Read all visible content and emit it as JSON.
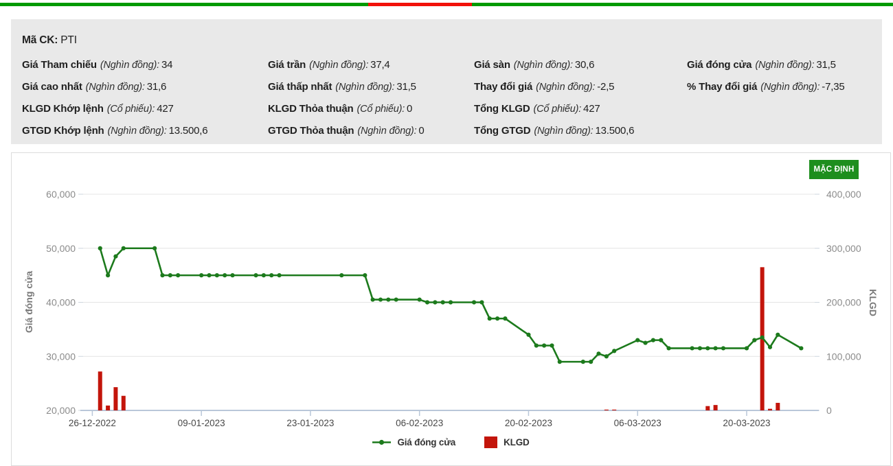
{
  "top_bar": {
    "green_color": "#009a00",
    "red_color": "#f2120a"
  },
  "info_panel": {
    "stock_label": "Mã CK:",
    "stock_code": "PTI",
    "rows": [
      [
        {
          "label": "Giá Tham chiếu",
          "unit": "(Nghìn đồng):",
          "value": "34"
        },
        {
          "label": "Giá trần",
          "unit": "(Nghìn đồng):",
          "value": "37,4"
        },
        {
          "label": "Giá sàn",
          "unit": "(Nghìn đồng):",
          "value": "30,6"
        },
        {
          "label": "Giá đóng cửa",
          "unit": "(Nghìn đồng):",
          "value": "31,5"
        }
      ],
      [
        {
          "label": "Giá cao nhất",
          "unit": "(Nghìn đồng):",
          "value": "31,6"
        },
        {
          "label": "Giá thấp nhất",
          "unit": "(Nghìn đồng):",
          "value": "31,5"
        },
        {
          "label": "Thay đổi giá",
          "unit": "(Nghìn đồng):",
          "value": "-2,5"
        },
        {
          "label": "% Thay đổi giá",
          "unit": "(Nghìn đồng):",
          "value": "-7,35"
        }
      ],
      [
        {
          "label": "KLGD Khớp lệnh",
          "unit": "(Cổ phiếu):",
          "value": "427"
        },
        {
          "label": "KLGD Thỏa thuận",
          "unit": "(Cổ phiếu):",
          "value": "0"
        },
        {
          "label": "Tổng KLGD",
          "unit": "(Cổ phiếu):",
          "value": "427"
        }
      ],
      [
        {
          "label": "GTGD Khớp lệnh",
          "unit": "(Nghìn đồng):",
          "value": "13.500,6"
        },
        {
          "label": "GTGD Thỏa thuận",
          "unit": "(Nghìn đồng):",
          "value": "0"
        },
        {
          "label": "Tổng GTGD",
          "unit": "(Nghìn đồng):",
          "value": "13.500,6"
        }
      ]
    ]
  },
  "chart": {
    "button_label": "MẶC ĐỊNH",
    "button_color": "#1e8e1e",
    "legend_price": "Giá đóng cửa",
    "legend_volume": "KLGD"
  },
  "chart_data": {
    "type": "line+bar",
    "x_axis": {
      "start_date": "26-12-2022",
      "tick_interval_days": 14,
      "tick_labels": [
        "26-12-2022",
        "09-01-2023",
        "23-01-2023",
        "06-02-2023",
        "20-02-2023",
        "06-03-2023",
        "20-03-2023"
      ]
    },
    "y_left": {
      "title": "Giá đóng cửa",
      "min": 20000,
      "max": 60000,
      "tick_labels": [
        "60,000",
        "50,000",
        "40,000",
        "30,000",
        "20,000"
      ],
      "tick_values": [
        60000,
        50000,
        40000,
        30000,
        20000
      ]
    },
    "y_right": {
      "title": "KLGD",
      "min": 0,
      "max": 400000,
      "tick_labels": [
        "400,000",
        "300,000",
        "200,000",
        "100,000",
        "0"
      ],
      "tick_values": [
        400000,
        300000,
        200000,
        100000,
        0
      ]
    },
    "grid": true,
    "legend_position": "bottom",
    "series": [
      {
        "name": "Giá đóng cửa",
        "type": "line",
        "color": "#1c7a1c",
        "axis": "left",
        "points": [
          {
            "date": "27-12-2022",
            "day": 1,
            "value": 50000
          },
          {
            "date": "28-12-2022",
            "day": 2,
            "value": 45000
          },
          {
            "date": "29-12-2022",
            "day": 3,
            "value": 48500
          },
          {
            "date": "30-12-2022",
            "day": 4,
            "value": 50000
          },
          {
            "date": "03-01-2023",
            "day": 8,
            "value": 50000
          },
          {
            "date": "04-01-2023",
            "day": 9,
            "value": 45000
          },
          {
            "date": "05-01-2023",
            "day": 10,
            "value": 45000
          },
          {
            "date": "06-01-2023",
            "day": 11,
            "value": 45000
          },
          {
            "date": "09-01-2023",
            "day": 14,
            "value": 45000
          },
          {
            "date": "10-01-2023",
            "day": 15,
            "value": 45000
          },
          {
            "date": "11-01-2023",
            "day": 16,
            "value": 45000
          },
          {
            "date": "12-01-2023",
            "day": 17,
            "value": 45000
          },
          {
            "date": "13-01-2023",
            "day": 18,
            "value": 45000
          },
          {
            "date": "16-01-2023",
            "day": 21,
            "value": 45000
          },
          {
            "date": "17-01-2023",
            "day": 22,
            "value": 45000
          },
          {
            "date": "18-01-2023",
            "day": 23,
            "value": 45000
          },
          {
            "date": "19-01-2023",
            "day": 24,
            "value": 45000
          },
          {
            "date": "27-01-2023",
            "day": 32,
            "value": 45000
          },
          {
            "date": "30-01-2023",
            "day": 35,
            "value": 45000
          },
          {
            "date": "31-01-2023",
            "day": 36,
            "value": 40500
          },
          {
            "date": "01-02-2023",
            "day": 37,
            "value": 40500
          },
          {
            "date": "02-02-2023",
            "day": 38,
            "value": 40500
          },
          {
            "date": "03-02-2023",
            "day": 39,
            "value": 40500
          },
          {
            "date": "06-02-2023",
            "day": 42,
            "value": 40500
          },
          {
            "date": "07-02-2023",
            "day": 43,
            "value": 40000
          },
          {
            "date": "08-02-2023",
            "day": 44,
            "value": 40000
          },
          {
            "date": "09-02-2023",
            "day": 45,
            "value": 40000
          },
          {
            "date": "10-02-2023",
            "day": 46,
            "value": 40000
          },
          {
            "date": "13-02-2023",
            "day": 49,
            "value": 40000
          },
          {
            "date": "14-02-2023",
            "day": 50,
            "value": 40000
          },
          {
            "date": "15-02-2023",
            "day": 51,
            "value": 37000
          },
          {
            "date": "16-02-2023",
            "day": 52,
            "value": 37000
          },
          {
            "date": "17-02-2023",
            "day": 53,
            "value": 37000
          },
          {
            "date": "20-02-2023",
            "day": 56,
            "value": 34000
          },
          {
            "date": "21-02-2023",
            "day": 57,
            "value": 32000
          },
          {
            "date": "22-02-2023",
            "day": 58,
            "value": 32000
          },
          {
            "date": "23-02-2023",
            "day": 59,
            "value": 32000
          },
          {
            "date": "24-02-2023",
            "day": 60,
            "value": 29000
          },
          {
            "date": "27-02-2023",
            "day": 63,
            "value": 29000
          },
          {
            "date": "28-02-2023",
            "day": 64,
            "value": 29000
          },
          {
            "date": "01-03-2023",
            "day": 65,
            "value": 30500
          },
          {
            "date": "02-03-2023",
            "day": 66,
            "value": 30000
          },
          {
            "date": "03-03-2023",
            "day": 67,
            "value": 31000
          },
          {
            "date": "06-03-2023",
            "day": 70,
            "value": 33000
          },
          {
            "date": "07-03-2023",
            "day": 71,
            "value": 32500
          },
          {
            "date": "08-03-2023",
            "day": 72,
            "value": 33000
          },
          {
            "date": "09-03-2023",
            "day": 73,
            "value": 33000
          },
          {
            "date": "10-03-2023",
            "day": 74,
            "value": 31500
          },
          {
            "date": "13-03-2023",
            "day": 77,
            "value": 31500
          },
          {
            "date": "14-03-2023",
            "day": 78,
            "value": 31500
          },
          {
            "date": "15-03-2023",
            "day": 79,
            "value": 31500
          },
          {
            "date": "16-03-2023",
            "day": 80,
            "value": 31500
          },
          {
            "date": "17-03-2023",
            "day": 81,
            "value": 31500
          },
          {
            "date": "20-03-2023",
            "day": 84,
            "value": 31500
          },
          {
            "date": "21-03-2023",
            "day": 85,
            "value": 33000
          },
          {
            "date": "22-03-2023",
            "day": 86,
            "value": 33500
          },
          {
            "date": "23-03-2023",
            "day": 87,
            "value": 31700
          },
          {
            "date": "24-03-2023",
            "day": 88,
            "value": 34000
          },
          {
            "date": "27-03-2023",
            "day": 91,
            "value": 31500
          }
        ]
      },
      {
        "name": "KLGD",
        "type": "bar",
        "color": "#c3150b",
        "axis": "right",
        "points": [
          {
            "date": "27-12-2022",
            "day": 1,
            "value": 72000
          },
          {
            "date": "28-12-2022",
            "day": 2,
            "value": 9000
          },
          {
            "date": "29-12-2022",
            "day": 3,
            "value": 43000
          },
          {
            "date": "30-12-2022",
            "day": 4,
            "value": 27000
          },
          {
            "date": "02-03-2023",
            "day": 66,
            "value": 1500
          },
          {
            "date": "03-03-2023",
            "day": 67,
            "value": 1500
          },
          {
            "date": "15-03-2023",
            "day": 79,
            "value": 8000
          },
          {
            "date": "16-03-2023",
            "day": 80,
            "value": 10000
          },
          {
            "date": "22-03-2023",
            "day": 86,
            "value": 265000
          },
          {
            "date": "23-03-2023",
            "day": 87,
            "value": 3000
          },
          {
            "date": "24-03-2023",
            "day": 88,
            "value": 14000
          }
        ]
      }
    ]
  }
}
